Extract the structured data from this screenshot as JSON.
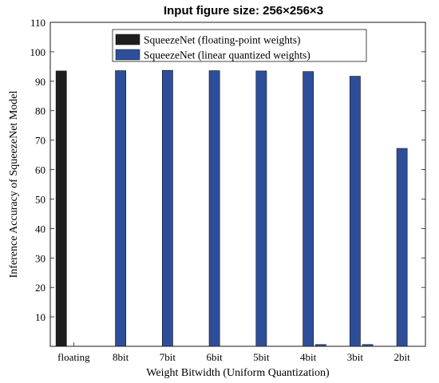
{
  "chart_data": {
    "type": "bar",
    "title": "Input figure size: 256×256×3",
    "xlabel": "Weight Bitwidth (Uniform Quantization)",
    "ylabel": "Inference Accuracy of SqueezeNet Model",
    "categories": [
      "floating",
      "8bit",
      "7bit",
      "6bit",
      "5bit",
      "4bit",
      "3bit",
      "2bit"
    ],
    "ylim": [
      0,
      110
    ],
    "yticks": [
      10,
      20,
      30,
      40,
      50,
      60,
      70,
      80,
      90,
      100,
      110
    ],
    "grid": false,
    "legend_position": "top",
    "series": [
      {
        "name": "SqueezeNet (floating-point weights)",
        "color": "#1e1e1e",
        "values": [
          93.5,
          null,
          null,
          null,
          null,
          null,
          null,
          null
        ]
      },
      {
        "name": "SqueezeNet (linear quantized weights)",
        "color": "#2d4f9a",
        "values": [
          null,
          93.6,
          93.7,
          93.6,
          93.5,
          93.3,
          91.7,
          67.2
        ]
      },
      {
        "name": "",
        "color": "#2d4f9a",
        "values": [
          null,
          null,
          null,
          null,
          null,
          0.6,
          0.6,
          null
        ]
      }
    ]
  }
}
